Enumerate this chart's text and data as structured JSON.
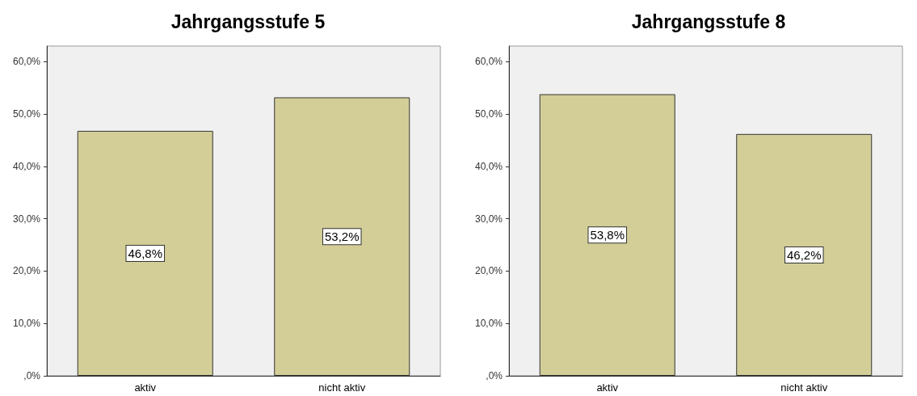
{
  "chart_data": [
    {
      "type": "bar",
      "title": "Jahrgangsstufe 5",
      "categories": [
        "aktiv",
        "nicht aktiv"
      ],
      "values": [
        46.8,
        53.2
      ],
      "color": "#d3ce97",
      "value_labels": [
        "46,8%",
        "53,2%"
      ],
      "ylim": [
        0,
        63
      ],
      "yticks": [
        {
          "value": 0,
          "label": ",0%"
        },
        {
          "value": 10,
          "label": "10,0%"
        },
        {
          "value": 20,
          "label": "20,0%"
        },
        {
          "value": 30,
          "label": "30,0%"
        },
        {
          "value": 40,
          "label": "40,0%"
        },
        {
          "value": 50,
          "label": "50,0%"
        },
        {
          "value": 60,
          "label": "60,0%"
        }
      ],
      "grid": false
    },
    {
      "type": "bar",
      "title": "Jahrgangsstufe 8",
      "categories": [
        "aktiv",
        "nicht aktiv"
      ],
      "values": [
        53.8,
        46.2
      ],
      "color": "#d3ce97",
      "value_labels": [
        "53,8%",
        "46,2%"
      ],
      "ylim": [
        0,
        63
      ],
      "yticks": [
        {
          "value": 0,
          "label": ",0%"
        },
        {
          "value": 10,
          "label": "10,0%"
        },
        {
          "value": 20,
          "label": "20,0%"
        },
        {
          "value": 30,
          "label": "30,0%"
        },
        {
          "value": 40,
          "label": "40,0%"
        },
        {
          "value": 50,
          "label": "50,0%"
        },
        {
          "value": 60,
          "label": "60,0%"
        }
      ],
      "grid": false
    }
  ]
}
